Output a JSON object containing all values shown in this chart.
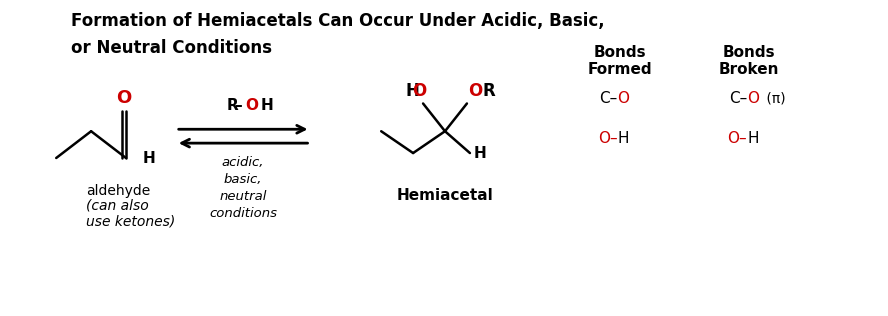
{
  "title_line1": "Formation of Hemiacetals Can Occur Under Acidic, Basic,",
  "title_line2": "or Neutral Conditions",
  "bg_color": "#ffffff",
  "black": "#000000",
  "red": "#cc0000",
  "aldehyde_label1": "aldehyde",
  "aldehyde_label2": "(can also\nuse ketones)",
  "product_label": "Hemiacetal",
  "bonds_formed_header": "Bonds\nFormed",
  "bonds_broken_header": "Bonds\nBroken",
  "figsize": [
    8.88,
    3.16
  ],
  "dpi": 100
}
